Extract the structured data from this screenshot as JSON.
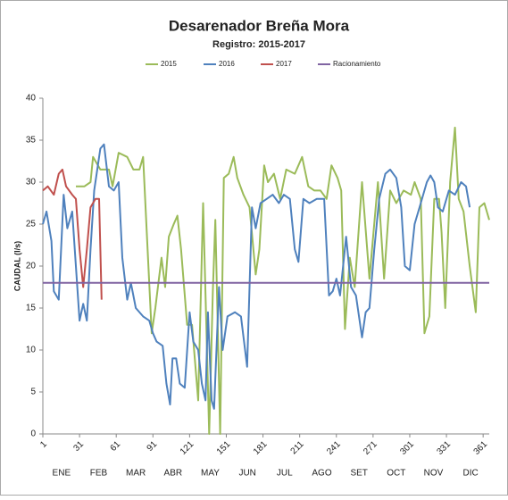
{
  "chart_data": {
    "type": "line",
    "title": "Desarenador Breña Mora",
    "subtitle": "Registro: 2015-2017",
    "y_label": "CAUDAL (l/s)",
    "xlim": [
      1,
      366
    ],
    "xticks": [
      1,
      31,
      61,
      91,
      121,
      151,
      181,
      211,
      241,
      271,
      301,
      331,
      361
    ],
    "ylim": [
      0,
      40
    ],
    "yticks": [
      0,
      5,
      10,
      15,
      20,
      25,
      30,
      35,
      40
    ],
    "months": [
      "ENE",
      "FEB",
      "MAR",
      "ABR",
      "MAY",
      "JUN",
      "JUL",
      "AGO",
      "SET",
      "OCT",
      "NOV",
      "DIC"
    ],
    "legend": "top",
    "series": [
      {
        "name": "2015",
        "color": "#9bbb59",
        "x": [
          28,
          35,
          40,
          42,
          48,
          55,
          58,
          63,
          70,
          75,
          80,
          83,
          86,
          90,
          93,
          98,
          101,
          104,
          108,
          111,
          114,
          119,
          123,
          128,
          132,
          137,
          140,
          142,
          146,
          149,
          153,
          157,
          160,
          165,
          170,
          175,
          178,
          182,
          185,
          190,
          195,
          200,
          207,
          213,
          218,
          223,
          228,
          233,
          237,
          242,
          245,
          248,
          252,
          256,
          262,
          268,
          275,
          280,
          285,
          290,
          296,
          302,
          305,
          310,
          313,
          317,
          321,
          325,
          327,
          330,
          334,
          338,
          341,
          345,
          350,
          355,
          358,
          362,
          366
        ],
        "values": [
          29.5,
          29.5,
          30,
          33,
          31.5,
          31.5,
          29.5,
          33.5,
          33,
          31.5,
          31.5,
          33,
          24,
          12,
          15,
          21,
          17.5,
          23.5,
          25,
          26,
          22,
          13,
          13,
          4,
          27.5,
          0,
          17,
          25.5,
          0,
          30.5,
          31,
          33,
          30.5,
          28.5,
          27,
          19,
          22,
          32,
          30,
          31,
          28,
          31.5,
          31,
          33,
          29.5,
          29,
          29,
          28,
          32,
          30.5,
          29,
          12.5,
          21,
          17.5,
          30,
          18.5,
          30,
          18.5,
          29,
          27.5,
          29,
          28.5,
          30,
          28,
          12,
          14,
          28,
          28,
          24,
          15,
          30,
          36.5,
          28,
          26.5,
          20,
          14.5,
          27,
          27.5,
          25.5
        ]
      },
      {
        "name": "2016",
        "color": "#4f81bd",
        "x": [
          1,
          4,
          8,
          10,
          14,
          18,
          21,
          25,
          28,
          31,
          34,
          37,
          40,
          43,
          48,
          51,
          55,
          59,
          63,
          66,
          70,
          73,
          77,
          83,
          88,
          91,
          94,
          99,
          102,
          105,
          107,
          110,
          113,
          117,
          121,
          124,
          128,
          131,
          134,
          136,
          139,
          141,
          145,
          148,
          152,
          158,
          163,
          168,
          172,
          175,
          179,
          184,
          189,
          194,
          198,
          203,
          207,
          210,
          214,
          219,
          225,
          231,
          235,
          238,
          241,
          244,
          249,
          253,
          257,
          262,
          265,
          268,
          272,
          276,
          281,
          285,
          290,
          294,
          297,
          301,
          305,
          310,
          315,
          318,
          321,
          324,
          328,
          333,
          338,
          343,
          347,
          350
        ],
        "values": [
          25,
          26.5,
          23,
          17,
          16,
          28.5,
          24.5,
          26.5,
          20,
          13.5,
          15.5,
          13.5,
          22,
          29,
          34,
          34.5,
          29.5,
          29,
          30,
          21,
          16,
          18,
          15,
          14,
          13.5,
          12,
          11,
          10.5,
          6,
          3.5,
          9,
          9,
          6,
          5.5,
          14.5,
          11,
          10,
          6,
          4,
          14.5,
          4,
          3,
          17.5,
          10,
          14,
          14.5,
          14,
          8,
          27,
          24.5,
          27.5,
          28,
          28.5,
          27.5,
          28.5,
          28,
          22,
          20.5,
          28,
          27.5,
          28,
          28,
          16.5,
          17,
          18.5,
          16.5,
          23.5,
          17.5,
          16.5,
          11.5,
          14.5,
          15,
          22,
          28,
          31,
          31.5,
          30.5,
          27,
          20,
          19.5,
          25,
          27.5,
          30,
          30.8,
          30,
          27,
          26.5,
          29,
          28.5,
          30,
          29.5,
          27
        ]
      },
      {
        "name": "2017",
        "color": "#c0504d",
        "x": [
          1,
          5,
          10,
          14,
          17,
          20,
          25,
          28,
          31,
          34,
          37,
          40,
          44,
          47,
          49
        ],
        "values": [
          29,
          29.5,
          28.5,
          31,
          31.5,
          29.5,
          28.5,
          28,
          22,
          17.5,
          22,
          27,
          28,
          28,
          16
        ]
      },
      {
        "name": "Racionamiento",
        "color": "#8064a2",
        "x": [
          1,
          366
        ],
        "values": [
          18,
          18
        ]
      }
    ]
  }
}
